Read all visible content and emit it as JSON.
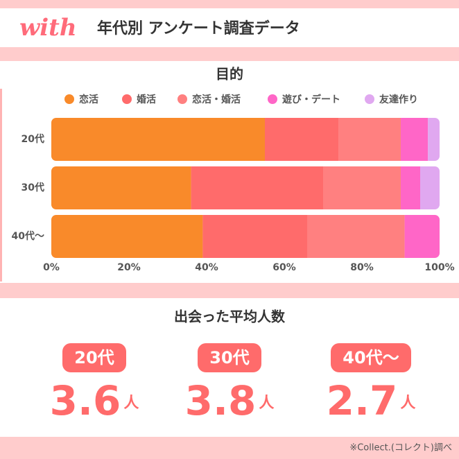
{
  "header": {
    "logo": "with",
    "title": "年代別 アンケート調査データ"
  },
  "chart_data": {
    "type": "stacked-barh",
    "title": "目的",
    "categories": [
      "20代",
      "30代",
      "40代〜"
    ],
    "series": [
      {
        "name": "恋活",
        "color": "#f98a2a",
        "values": [
          55,
          36,
          39
        ]
      },
      {
        "name": "婚活",
        "color": "#ff6b6b",
        "values": [
          19,
          34,
          27
        ]
      },
      {
        "name": "恋活・婚活",
        "color": "#ff8080",
        "values": [
          16,
          20,
          25
        ]
      },
      {
        "name": "遊び・デート",
        "color": "#ff66c7",
        "values": [
          7,
          5,
          9
        ]
      },
      {
        "name": "友達作り",
        "color": "#e0a8f0",
        "values": [
          3,
          5,
          0
        ]
      }
    ],
    "xlim": [
      0,
      100
    ],
    "xticks": [
      {
        "value": 0,
        "label": "0%"
      },
      {
        "value": 20,
        "label": "20%"
      },
      {
        "value": 40,
        "label": "40%"
      },
      {
        "value": 60,
        "label": "60%"
      },
      {
        "value": 80,
        "label": "80%"
      },
      {
        "value": 100,
        "label": "100%"
      }
    ],
    "legend": "top"
  },
  "stats": {
    "title": "出会った平均人数",
    "items": [
      {
        "label": "20代",
        "value": 3.6,
        "unit": "人"
      },
      {
        "label": "30代",
        "value": 3.8,
        "unit": "人"
      },
      {
        "label": "40代〜",
        "value": 2.7,
        "unit": "人"
      }
    ]
  },
  "footer": {
    "note": "※Collect.(コレクト)調べ"
  }
}
